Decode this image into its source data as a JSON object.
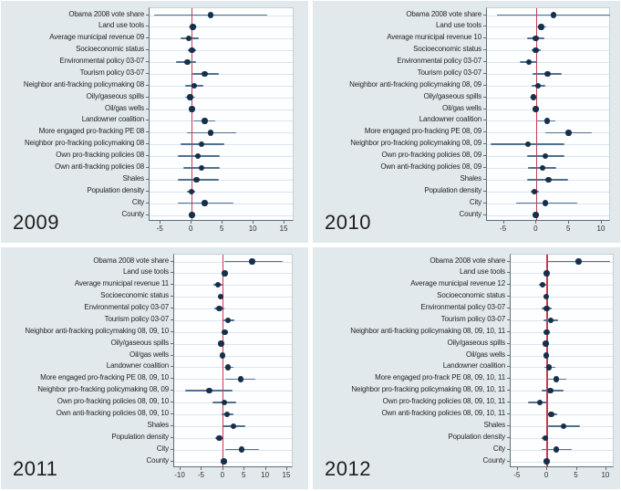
{
  "figure": {
    "description": "Four-panel horizontal coefficient (forest) plot grid by year",
    "colors": {
      "panel_background": "#e2e9ec",
      "plot_background": "#fdfeff",
      "gridline": "#dbe5ee",
      "zero_line": "#c83a50",
      "ci_line": "#51708f",
      "marker": "#16304a",
      "text": "#262626"
    }
  },
  "chart_data": [
    {
      "type": "scatter",
      "subtype": "coefficient-plot-with-ci",
      "year": "2009",
      "legend_position": "none",
      "grid": true,
      "zero_line": 0,
      "xlim": [
        -6.8,
        16.6
      ],
      "xticks": [
        "-5",
        "0",
        "5",
        "10",
        "15"
      ],
      "xtick_values": [
        -5,
        0,
        5,
        10,
        15
      ],
      "categories": [
        "Obama 2008 vote share",
        "Land use tools",
        "Average municipal revenue 09",
        "Socioeconomic status",
        "Environmental policy 03-07",
        "Tourism policy 03-07",
        "Neighbor anti-fracking policymaking 08",
        "Oily/gaseous spills",
        "Oil/gas wells",
        "Landowner coalition",
        "More engaged pro-fracking PE 08",
        "Neighbor pro-fracking policymaking 08",
        "Own pro-fracking policies 08",
        "Own anti-fracking policies 08",
        "Shales",
        "Population density",
        "City",
        "County"
      ],
      "estimates": [
        3.1,
        0.2,
        -0.5,
        0.05,
        -0.7,
        2.1,
        0.4,
        -0.25,
        0.05,
        2.1,
        3.1,
        1.6,
        1.0,
        1.6,
        0.8,
        0.0,
        2.1,
        0.05
      ],
      "ci_low": [
        -6.1,
        -0.45,
        -1.8,
        -0.6,
        -2.5,
        0.1,
        -1.0,
        -1.0,
        -0.3,
        0.2,
        -0.7,
        -1.8,
        -2.2,
        -1.3,
        -2.2,
        -0.7,
        -2.3,
        -0.25
      ],
      "ci_high": [
        12.2,
        0.85,
        1.2,
        0.65,
        0.65,
        4.4,
        1.9,
        0.55,
        0.4,
        3.8,
        7.2,
        5.2,
        4.6,
        4.6,
        4.4,
        0.55,
        6.7,
        0.3
      ]
    },
    {
      "type": "scatter",
      "subtype": "coefficient-plot-with-ci",
      "year": "2010",
      "legend_position": "none",
      "grid": true,
      "zero_line": 0,
      "xlim": [
        -7.6,
        11.4
      ],
      "xticks": [
        "-5",
        "0",
        "5",
        "10"
      ],
      "xtick_values": [
        -5,
        0,
        5,
        10
      ],
      "categories": [
        "Obama 2008 vote share",
        "Land use tools",
        "Average municipal revenue 10",
        "Socioeconomic status",
        "Environmental policy 03-07",
        "Tourism policy 03-07",
        "Neighbor anti-fracking policymaking 08, 09",
        "Oily/gaseous spills",
        "Oil/gas wells",
        "Landowner coalition",
        "More engaged pro-fracking PE 08, 09",
        "Neighbor pro-fracking policymaking 08, 09",
        "Own pro-fracking policies 08, 09",
        "Own anti-fracking policies 08, 09",
        "Shales",
        "Population density",
        "City",
        "County"
      ],
      "estimates": [
        2.6,
        0.7,
        -0.1,
        -0.1,
        -1.2,
        1.7,
        0.2,
        -0.5,
        -0.1,
        1.6,
        4.9,
        -1.3,
        1.3,
        0.9,
        1.85,
        -0.35,
        1.3,
        -0.1
      ],
      "ci_low": [
        -6.1,
        -0.1,
        -1.4,
        -0.8,
        -2.6,
        -0.6,
        -0.7,
        -1.05,
        -0.35,
        0.15,
        1.3,
        -7.0,
        -1.5,
        -1.25,
        -1.4,
        -0.95,
        -3.1,
        -0.35
      ],
      "ci_high": [
        11.3,
        1.5,
        1.2,
        0.6,
        0.1,
        3.9,
        1.3,
        0.1,
        0.15,
        2.9,
        8.4,
        4.3,
        4.3,
        3.0,
        4.9,
        0.3,
        6.3,
        0.15
      ]
    },
    {
      "type": "scatter",
      "subtype": "coefficient-plot-with-ci",
      "year": "2011",
      "legend_position": "none",
      "grid": true,
      "zero_line": 0,
      "xlim": [
        -11.5,
        16.5
      ],
      "xticks": [
        "-10",
        "-5",
        "0",
        "5",
        "10",
        "15"
      ],
      "xtick_values": [
        -10,
        -5,
        0,
        5,
        10,
        15
      ],
      "categories": [
        "Obama 2008 vote share",
        "Land use tools",
        "Average municipal revenue 11",
        "Socioeconomic status",
        "Environmental policy 03-07",
        "Tourism policy 03-07",
        "Neighbor anti-fracking policymaking 08, 09, 10",
        "Oily/gaseous spills",
        "Oil/gas wells",
        "Landowner coalition",
        "More engaged pro-fracking PE 08, 09, 10",
        "Neighbor pro-fracking policymaking 08, 09",
        "Own pro-fracking policies 08, 09, 10",
        "Own anti-fracking policies 08, 09, 10",
        "Shales",
        "Population density",
        "City",
        "County"
      ],
      "estimates": [
        6.8,
        0.4,
        -1.2,
        -0.55,
        -0.9,
        1.1,
        0.4,
        -0.5,
        -0.2,
        1.1,
        4.1,
        -3.3,
        0.2,
        0.9,
        2.4,
        -0.9,
        4.3,
        0.15
      ],
      "ci_low": [
        0.3,
        -0.25,
        -2.4,
        -1.15,
        -2.0,
        0.0,
        -0.3,
        -1.0,
        -0.55,
        0.2,
        0.4,
        -8.9,
        -2.5,
        -0.35,
        -0.2,
        -1.8,
        0.4,
        -0.15
      ],
      "ci_high": [
        13.9,
        1.05,
        -0.1,
        0.05,
        0.2,
        2.7,
        1.15,
        0.1,
        0.2,
        2.5,
        7.6,
        2.1,
        3.0,
        2.5,
        5.1,
        -0.1,
        8.35,
        0.45
      ]
    },
    {
      "type": "scatter",
      "subtype": "coefficient-plot-with-ci",
      "year": "2012",
      "legend_position": "none",
      "grid": true,
      "zero_line": 0,
      "xlim": [
        -6.2,
        11.4
      ],
      "xticks": [
        "-5",
        "0",
        "5",
        "10"
      ],
      "xtick_values": [
        -5,
        0,
        5,
        10
      ],
      "categories": [
        "Obama 2008 vote share",
        "Land use tools",
        "Average municipal revenue 12",
        "Socioeconomic status",
        "Environmental policy 03-07",
        "Tourism policy 03-07",
        "Neighbor anti-fracking policymaking 08, 09, 10, 11",
        "Oily/gaseous spills",
        "Oil/gas wells",
        "Landowner coalition",
        "More engaged pro-frack PE 08, 09, 10, 11",
        "Neighbor pro-fracking policymaking 08, 09, 10, 11",
        "Own pro-fracking policies 08, 09, 10, 11",
        "Own anti-fracking policies 08, 09, 10, 11",
        "Shales",
        "Population density",
        "City",
        "County"
      ],
      "estimates": [
        5.3,
        -0.1,
        -0.8,
        -0.2,
        -0.1,
        0.6,
        -0.1,
        -0.25,
        -0.15,
        0.25,
        1.55,
        0.5,
        -1.3,
        0.7,
        2.8,
        -0.35,
        1.55,
        -0.1
      ],
      "ci_low": [
        0.15,
        -0.5,
        -1.4,
        -0.6,
        -0.9,
        -0.6,
        -0.5,
        -0.6,
        -0.45,
        -0.5,
        0.15,
        -1.0,
        -3.3,
        -0.1,
        0.15,
        -0.9,
        -0.9,
        -0.4
      ],
      "ci_high": [
        10.7,
        0.3,
        -0.15,
        0.2,
        0.7,
        1.8,
        0.3,
        0.1,
        0.15,
        1.4,
        3.2,
        2.7,
        -0.1,
        1.7,
        5.6,
        0.15,
        4.1,
        0.2
      ]
    }
  ]
}
